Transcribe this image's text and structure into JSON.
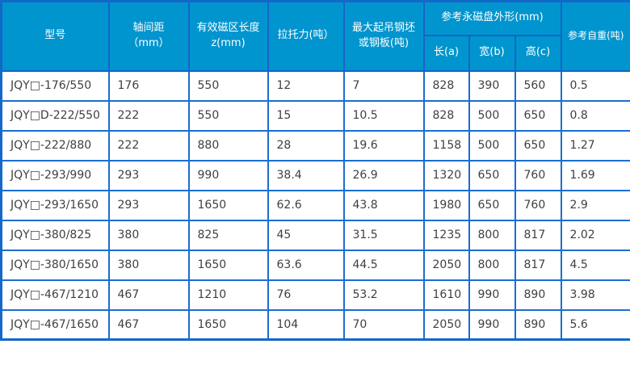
{
  "colors": {
    "header_bg": "#0095ce",
    "header_border": "#1464c8",
    "grid_border": "#1a6ed0",
    "header_text": "#ffffff",
    "body_text": "#404040"
  },
  "table": {
    "header": {
      "model": "型号",
      "axle": "轴间距\n（mm）",
      "zone": "有效磁区长度\nz(mm)",
      "pull": "拉托力(吨）",
      "max_lift": "最大起吊钢坯\n或钢板(吨)",
      "dims_group": "参考永磁盘外形(mm)",
      "dim_a": "长(a)",
      "dim_b": "宽(b)",
      "dim_c": "高(c)",
      "weight": "参考自重(吨)"
    },
    "cell_names": [
      "cell-model",
      "cell-axle-spacing",
      "cell-magnetic-zone-length",
      "cell-pull-force",
      "cell-max-lift",
      "cell-length-a",
      "cell-width-b",
      "cell-height-c",
      "cell-self-weight"
    ],
    "rows": [
      [
        "JQY□-176/550",
        "176",
        "550",
        "12",
        "7",
        "828",
        "390",
        "560",
        "0.5"
      ],
      [
        "JQY□D-222/550",
        "222",
        "550",
        "15",
        "10.5",
        "828",
        "500",
        "650",
        "0.8"
      ],
      [
        "JQY□-222/880",
        "222",
        "880",
        "28",
        "19.6",
        "1158",
        "500",
        "650",
        "1.27"
      ],
      [
        "JQY□-293/990",
        "293",
        "990",
        "38.4",
        "26.9",
        "1320",
        "650",
        "760",
        "1.69"
      ],
      [
        "JQY□-293/1650",
        "293",
        "1650",
        "62.6",
        "43.8",
        "1980",
        "650",
        "760",
        "2.9"
      ],
      [
        "JQY□-380/825",
        "380",
        "825",
        "45",
        "31.5",
        "1235",
        "800",
        "817",
        "2.02"
      ],
      [
        "JQY□-380/1650",
        "380",
        "1650",
        "63.6",
        "44.5",
        "2050",
        "800",
        "817",
        "4.5"
      ],
      [
        "JQY□-467/1210",
        "467",
        "1210",
        "76",
        "53.2",
        "1610",
        "990",
        "890",
        "3.98"
      ],
      [
        "JQY□-467/1650",
        "467",
        "1650",
        "104",
        "70",
        "2050",
        "990",
        "890",
        "5.6"
      ]
    ]
  }
}
